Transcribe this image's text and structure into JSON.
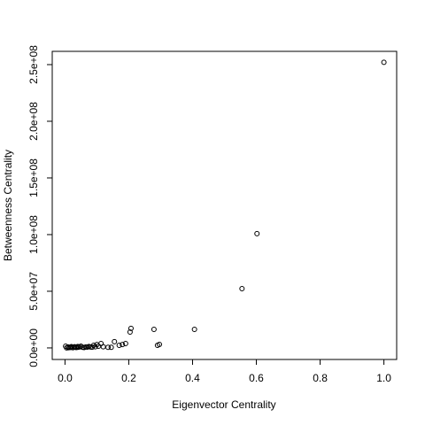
{
  "chart_data": {
    "type": "scatter",
    "xlabel": "Eigenvector Centrality",
    "ylabel": "Betweenness Centrality",
    "color": "#000000",
    "xlim": [
      -0.04,
      1.04
    ],
    "ylim": [
      -10200000,
      261700000
    ],
    "xticks": [
      {
        "value": 0,
        "label": "0.0"
      },
      0.2,
      0.4,
      0.6,
      0.8,
      {
        "value": 1,
        "label": "1.0"
      }
    ],
    "yticks": [
      {
        "value": 0,
        "label": "0.0e+00"
      },
      {
        "value": 50000000,
        "label": "5.0e+07"
      },
      {
        "value": 100000000,
        "label": "1.0e+08"
      },
      {
        "value": 150000000,
        "label": "1.5e+08"
      },
      {
        "value": 200000000,
        "label": "2.0e+08"
      },
      {
        "value": 250000000,
        "label": "2.5e+08"
      }
    ],
    "x": [
      1.0,
      0.602,
      0.555,
      0.406,
      0.279,
      0.207,
      0.204,
      0.296,
      0.29,
      0.155,
      0.19,
      0.18,
      0.17,
      0.113,
      0.1,
      0.12,
      0.135,
      0.145,
      0.09,
      0.08,
      0.065,
      0.05,
      0.045,
      0.04,
      0.035,
      0.03,
      0.025,
      0.02,
      0.015,
      0.01,
      0.005,
      0.002,
      0.055,
      0.06,
      0.07,
      0.075,
      0.085,
      0.095,
      0.105,
      0.04,
      0.03,
      0.02,
      0.01
    ],
    "values": [
      252000000,
      100800000,
      52300000,
      16400000,
      16400000,
      17200000,
      14000000,
      3100000,
      2300000,
      5500000,
      3900000,
      3000000,
      2300000,
      3900000,
      3000000,
      1000000,
      500000,
      500000,
      2300000,
      800000,
      800000,
      1500000,
      800000,
      500000,
      300000,
      600000,
      200000,
      400000,
      300000,
      200000,
      100000,
      1500000,
      500000,
      300000,
      700000,
      1200000,
      600000,
      1000000,
      1500000,
      1200000,
      1000000,
      1100000,
      800000
    ]
  }
}
